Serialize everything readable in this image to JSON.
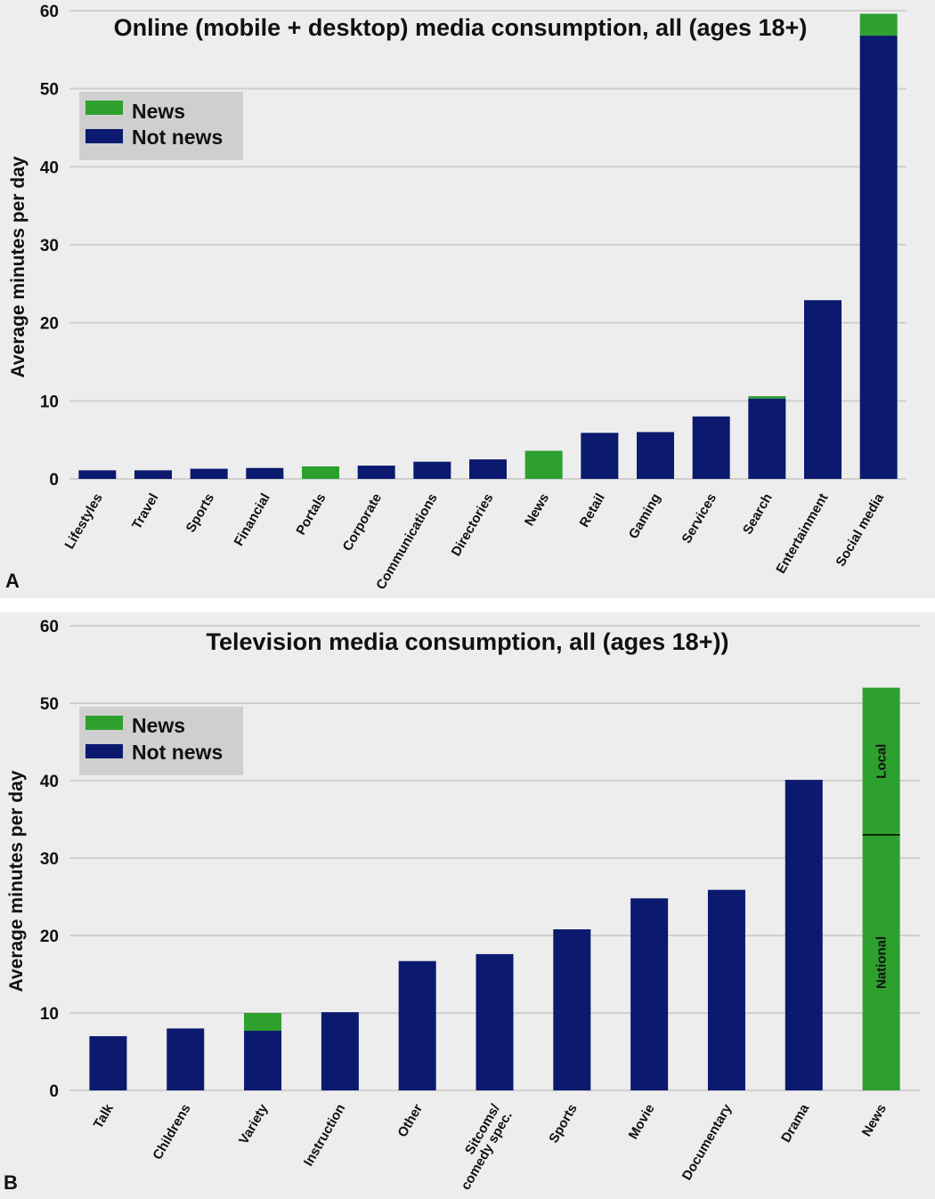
{
  "colors": {
    "news": "#2ea02e",
    "not_news": "#0b1a6e",
    "plot_bg": "#ededed",
    "legend_bg": "#cfcfcf",
    "grid": "#cfcfcf"
  },
  "chart_data": [
    {
      "type": "bar",
      "stacked": true,
      "panel_label": "A",
      "title": "Online (mobile + desktop) media consumption, all (ages 18+)",
      "xlabel": "",
      "ylabel": "Average minutes per day",
      "ylim": [
        0,
        60
      ],
      "yticks": [
        0,
        10,
        20,
        30,
        40,
        50,
        60
      ],
      "grid": true,
      "legend_position": "top-left",
      "legend": [
        "News",
        "Not news"
      ],
      "categories": [
        "Lifestyles",
        "Travel",
        "Sports",
        "Financial",
        "Portals",
        "Corporate",
        "Communications",
        "Directories",
        "News",
        "Retail",
        "Gaming",
        "Services",
        "Search",
        "Entertainment",
        "Social media"
      ],
      "series": [
        {
          "name": "Not news",
          "values": [
            1.1,
            1.1,
            1.3,
            1.4,
            0,
            1.7,
            2.2,
            2.5,
            0,
            5.9,
            6.0,
            8.0,
            10.3,
            22.9,
            56.8
          ]
        },
        {
          "name": "News",
          "values": [
            0,
            0,
            0,
            0,
            1.6,
            0,
            0,
            0,
            3.6,
            0,
            0,
            0,
            0.3,
            0,
            2.8
          ]
        }
      ],
      "annotations": []
    },
    {
      "type": "bar",
      "stacked": true,
      "panel_label": "B",
      "title": "Television media consumption, all (ages 18+))",
      "xlabel": "",
      "ylabel": "Average minutes per day",
      "ylim": [
        0,
        60
      ],
      "yticks": [
        0,
        10,
        20,
        30,
        40,
        50,
        60
      ],
      "grid": true,
      "legend_position": "top-left",
      "legend": [
        "News",
        "Not news"
      ],
      "categories": [
        "Talk",
        "Childrens",
        "Variety",
        "Instruction",
        "Other",
        "Sitcoms/\ncomedy spec.",
        "Sports",
        "Movie",
        "Documentary",
        "Drama",
        "News"
      ],
      "series": [
        {
          "name": "Not news",
          "values": [
            7.0,
            8.0,
            7.7,
            10.1,
            16.7,
            17.6,
            20.8,
            24.8,
            25.9,
            40.1,
            0
          ]
        },
        {
          "name": "News",
          "values": [
            0,
            0,
            2.3,
            0,
            0,
            0,
            0,
            0,
            0,
            0,
            52.0
          ]
        }
      ],
      "annotations": [
        {
          "category": "News",
          "text": "National",
          "from": 0,
          "to": 33.0
        },
        {
          "category": "News",
          "text": "Local",
          "from": 33.0,
          "to": 52.0
        }
      ]
    }
  ]
}
